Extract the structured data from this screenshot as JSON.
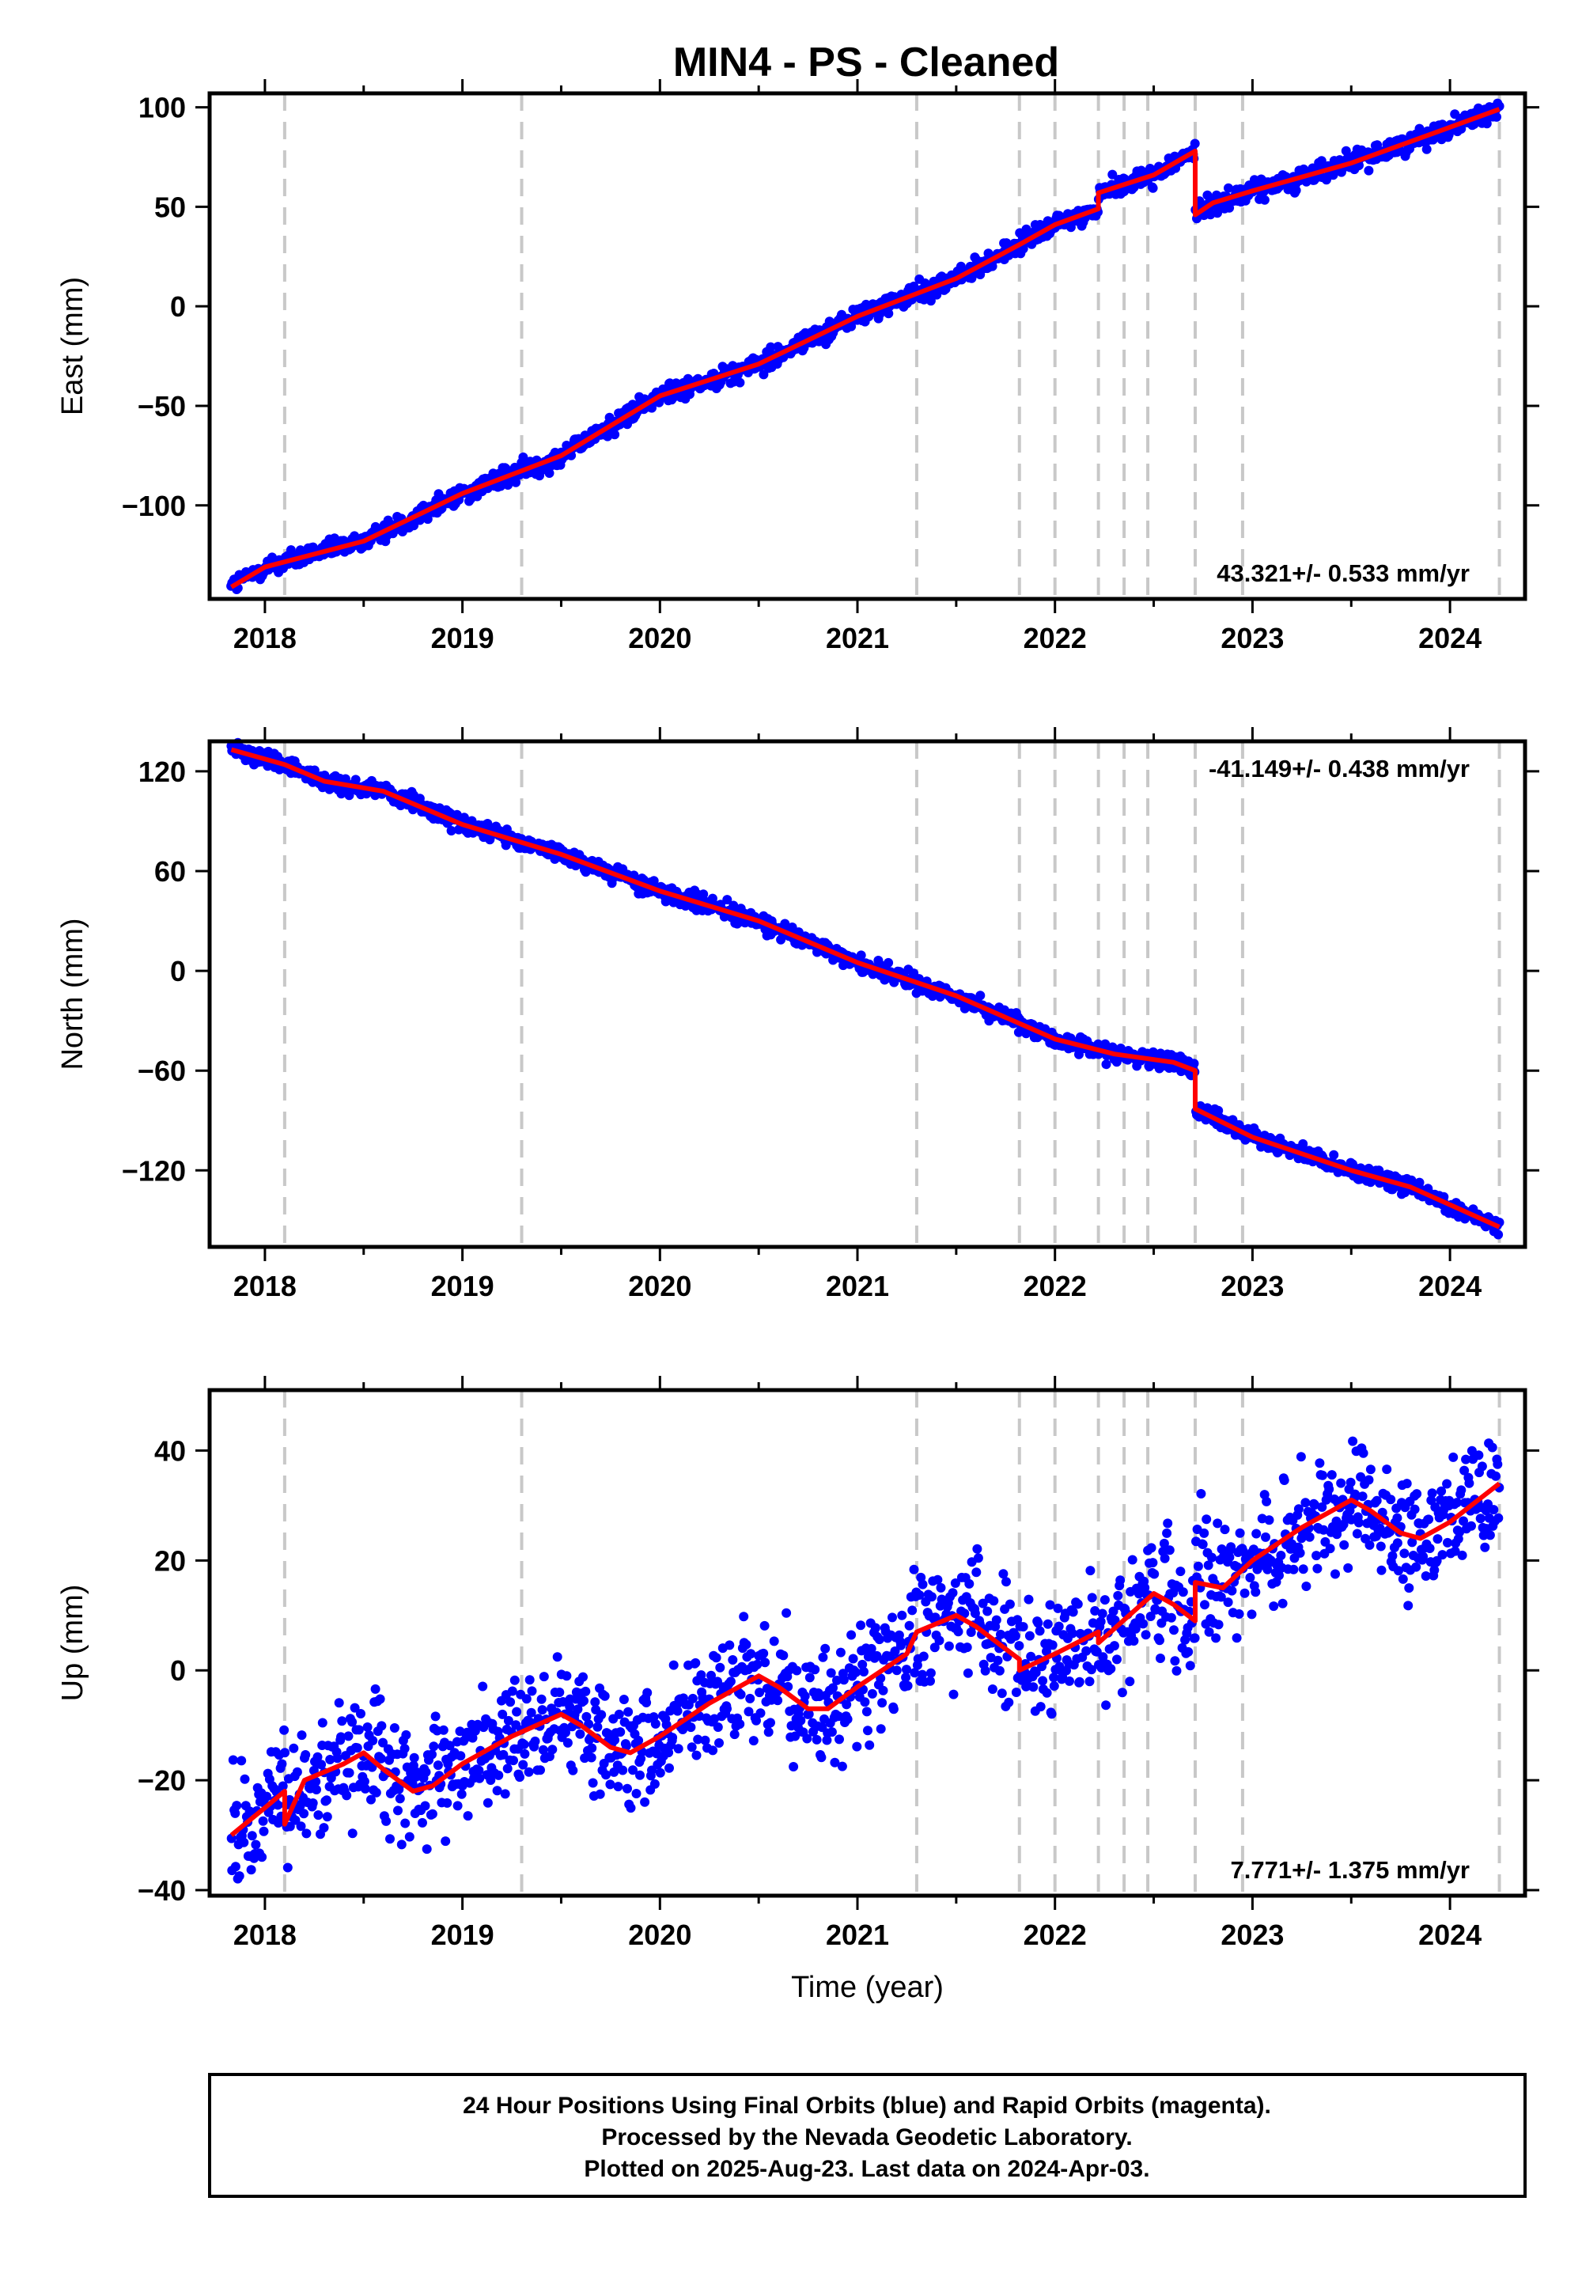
{
  "title": "MIN4  - PS - Cleaned",
  "colors": {
    "data_points": "#0000ff",
    "model_line": "#ff0000",
    "event_lines": "#c8c8c8",
    "frame": "#000000"
  },
  "footer": {
    "line1": "24 Hour Positions Using Final Orbits (blue) and Rapid Orbits (magenta).",
    "line2": "Processed by the Nevada Geodetic Laboratory.",
    "line3": "Plotted on 2025-Aug-23. Last data on 2024-Apr-03."
  },
  "chart_data": [
    {
      "type": "scatter",
      "component": "East",
      "ylabel": "East (mm)",
      "xlabel": "",
      "xlim": [
        2017.72,
        2024.38
      ],
      "ylim": [
        -147,
        107
      ],
      "xticks": [
        2018,
        2019,
        2020,
        2021,
        2022,
        2023,
        2024
      ],
      "yticks": [
        100,
        50,
        0,
        -50,
        -100
      ],
      "event_lines_x": [
        2018.1,
        2019.3,
        2021.3,
        2021.82,
        2022.0,
        2022.22,
        2022.35,
        2022.47,
        2022.71,
        2022.95,
        2024.25
      ],
      "rate_text": "43.321+/- 0.533 mm/yr",
      "rate_position": "bottom-right",
      "model_line": {
        "x": [
          2017.83,
          2018.0,
          2018.5,
          2019.0,
          2019.5,
          2020.0,
          2020.5,
          2021.0,
          2021.5,
          2021.82,
          2022.0,
          2022.22,
          2022.22,
          2022.5,
          2022.71,
          2022.71,
          2022.8,
          2023.0,
          2023.5,
          2024.0,
          2024.25
        ],
        "y": [
          -141,
          -131,
          -118,
          -94,
          -75,
          -45,
          -29,
          -5,
          14,
          31,
          41,
          49,
          57,
          66,
          78,
          46,
          52,
          58,
          72,
          90,
          99
        ]
      },
      "points": {
        "x_start": 2017.83,
        "x_end": 2024.25,
        "count": 1400,
        "scatter_mm": 2.5
      }
    },
    {
      "type": "scatter",
      "component": "North",
      "ylabel": "North (mm)",
      "xlabel": "",
      "xlim": [
        2017.72,
        2024.38
      ],
      "ylim": [
        -166,
        138
      ],
      "xticks": [
        2018,
        2019,
        2020,
        2021,
        2022,
        2023,
        2024
      ],
      "yticks": [
        120,
        60,
        0,
        -60,
        -120
      ],
      "event_lines_x": [
        2018.1,
        2019.3,
        2021.3,
        2021.82,
        2022.0,
        2022.22,
        2022.35,
        2022.47,
        2022.71,
        2022.95,
        2024.25
      ],
      "rate_text": "-41.149+/- 0.438 mm/yr",
      "rate_position": "top-right",
      "model_line": {
        "x": [
          2017.83,
          2018.1,
          2018.3,
          2018.6,
          2019.0,
          2019.5,
          2020.0,
          2020.5,
          2021.0,
          2021.5,
          2022.0,
          2022.3,
          2022.6,
          2022.71,
          2022.71,
          2023.0,
          2023.5,
          2023.8,
          2024.25
        ],
        "y": [
          133,
          124,
          114,
          108,
          88,
          70,
          48,
          30,
          5,
          -15,
          -41,
          -50,
          -55,
          -60,
          -83,
          -100,
          -120,
          -130,
          -154
        ]
      },
      "points": {
        "x_start": 2017.83,
        "x_end": 2024.25,
        "count": 1400,
        "scatter_mm": 2.5
      }
    },
    {
      "type": "scatter",
      "component": "Up",
      "ylabel": "Up (mm)",
      "xlabel": "Time (year)",
      "xlim": [
        2017.72,
        2024.38
      ],
      "ylim": [
        -41,
        51
      ],
      "xticks": [
        2018,
        2019,
        2020,
        2021,
        2022,
        2023,
        2024
      ],
      "yticks": [
        40,
        20,
        0,
        -20,
        -40
      ],
      "event_lines_x": [
        2018.1,
        2019.3,
        2021.3,
        2021.82,
        2022.0,
        2022.22,
        2022.35,
        2022.47,
        2022.71,
        2022.95,
        2024.25
      ],
      "rate_text": "7.771+/- 1.375 mm/yr",
      "rate_position": "bottom-right",
      "model_line": {
        "x": [
          2017.83,
          2018.0,
          2018.1,
          2018.1,
          2018.2,
          2018.4,
          2018.5,
          2018.6,
          2018.75,
          2018.85,
          2019.0,
          2019.25,
          2019.5,
          2019.6,
          2019.75,
          2019.85,
          2020.0,
          2020.25,
          2020.5,
          2020.6,
          2020.75,
          2020.85,
          2021.0,
          2021.25,
          2021.3,
          2021.5,
          2021.6,
          2021.82,
          2021.82,
          2022.0,
          2022.22,
          2022.22,
          2022.5,
          2022.6,
          2022.71,
          2022.71,
          2022.85,
          2023.0,
          2023.25,
          2023.5,
          2023.6,
          2023.75,
          2023.85,
          2024.0,
          2024.25
        ],
        "y": [
          -30,
          -25,
          -22,
          -28,
          -20,
          -17,
          -15,
          -18,
          -22,
          -21,
          -17,
          -12,
          -8,
          -10,
          -14,
          -15,
          -12,
          -6,
          -1,
          -3,
          -7,
          -7,
          -3,
          3,
          7,
          10,
          8,
          2,
          0,
          3,
          7,
          5,
          14,
          12,
          9,
          16,
          15,
          20,
          26,
          31,
          29,
          25,
          24,
          27,
          34
        ]
      },
      "points": {
        "x_start": 2017.83,
        "x_end": 2024.25,
        "count": 1400,
        "scatter_mm": 5.5
      }
    }
  ]
}
